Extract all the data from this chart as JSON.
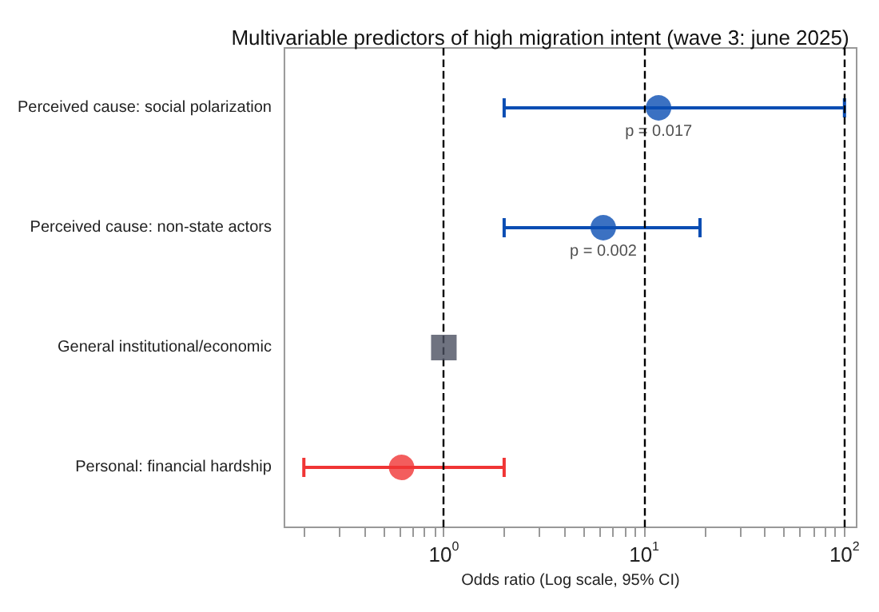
{
  "chart_data": {
    "type": "scatter",
    "orientation": "horizontal",
    "title": "Multivariable predictors of high migration intent (wave 3: june 2025)",
    "xlabel": "Odds ratio (Log scale, 95% CI)",
    "log": "x",
    "grid": false,
    "categories": [
      "Perceived cause: social polarization",
      "Perceived cause: non-state actors",
      "General institutional/economic",
      "Personal: financial hardship"
    ],
    "series": [
      {
        "marker": "circle",
        "colors": [
          "#0a4db3",
          "#0a4db3",
          null,
          "#f03535"
        ],
        "values": [
          11.8,
          6.25,
          null,
          0.615
        ],
        "errors": [
          [
            2,
            100
          ],
          [
            2,
            19
          ],
          null,
          [
            0.2,
            2
          ]
        ]
      },
      {
        "marker": "square",
        "color": "#4b5060",
        "values": [
          null,
          null,
          1,
          null
        ]
      }
    ],
    "xlim": [
      0.16,
      115
    ],
    "xticks": [
      {
        "value": 0.2,
        "label": null
      },
      {
        "value": 0.3,
        "label": null
      },
      {
        "value": 0.4,
        "label": null
      },
      {
        "value": 0.5,
        "label": null
      },
      {
        "value": 0.6,
        "label": null
      },
      {
        "value": 0.7,
        "label": null
      },
      {
        "value": 0.8,
        "label": null
      },
      {
        "value": 0.9,
        "label": null
      },
      {
        "value": 1,
        "label": "10$^{0}$"
      },
      {
        "value": 2,
        "label": null
      },
      {
        "value": 3,
        "label": null
      },
      {
        "value": 4,
        "label": null
      },
      {
        "value": 5,
        "label": null
      },
      {
        "value": 6,
        "label": null
      },
      {
        "value": 7,
        "label": null
      },
      {
        "value": 8,
        "label": null
      },
      {
        "value": 9,
        "label": null
      },
      {
        "value": 10,
        "label": "10$^{1}$"
      },
      {
        "value": 20,
        "label": null
      },
      {
        "value": 30,
        "label": null
      },
      {
        "value": 40,
        "label": null
      },
      {
        "value": 50,
        "label": null
      },
      {
        "value": 60,
        "label": null
      },
      {
        "value": 70,
        "label": null
      },
      {
        "value": 80,
        "label": null
      },
      {
        "value": 90,
        "label": null
      },
      {
        "value": 100,
        "label": "10$^{2}$"
      }
    ],
    "ref_lines": [
      {
        "axis": "x",
        "value": 1,
        "color": "#000000",
        "line_style": "dashed"
      },
      {
        "axis": "x",
        "value": 10,
        "color": "#000000",
        "line_style": "dashed"
      },
      {
        "axis": "x",
        "value": 100,
        "color": "#000000",
        "line_style": "dashed"
      }
    ],
    "annotations": [
      {
        "text": "p = 0.017",
        "x": 11.8,
        "y": "Perceived cause: social polarization"
      },
      {
        "text": "p = 0.002",
        "x": 6.25,
        "y": "Perceived cause: non-state actors"
      }
    ]
  }
}
